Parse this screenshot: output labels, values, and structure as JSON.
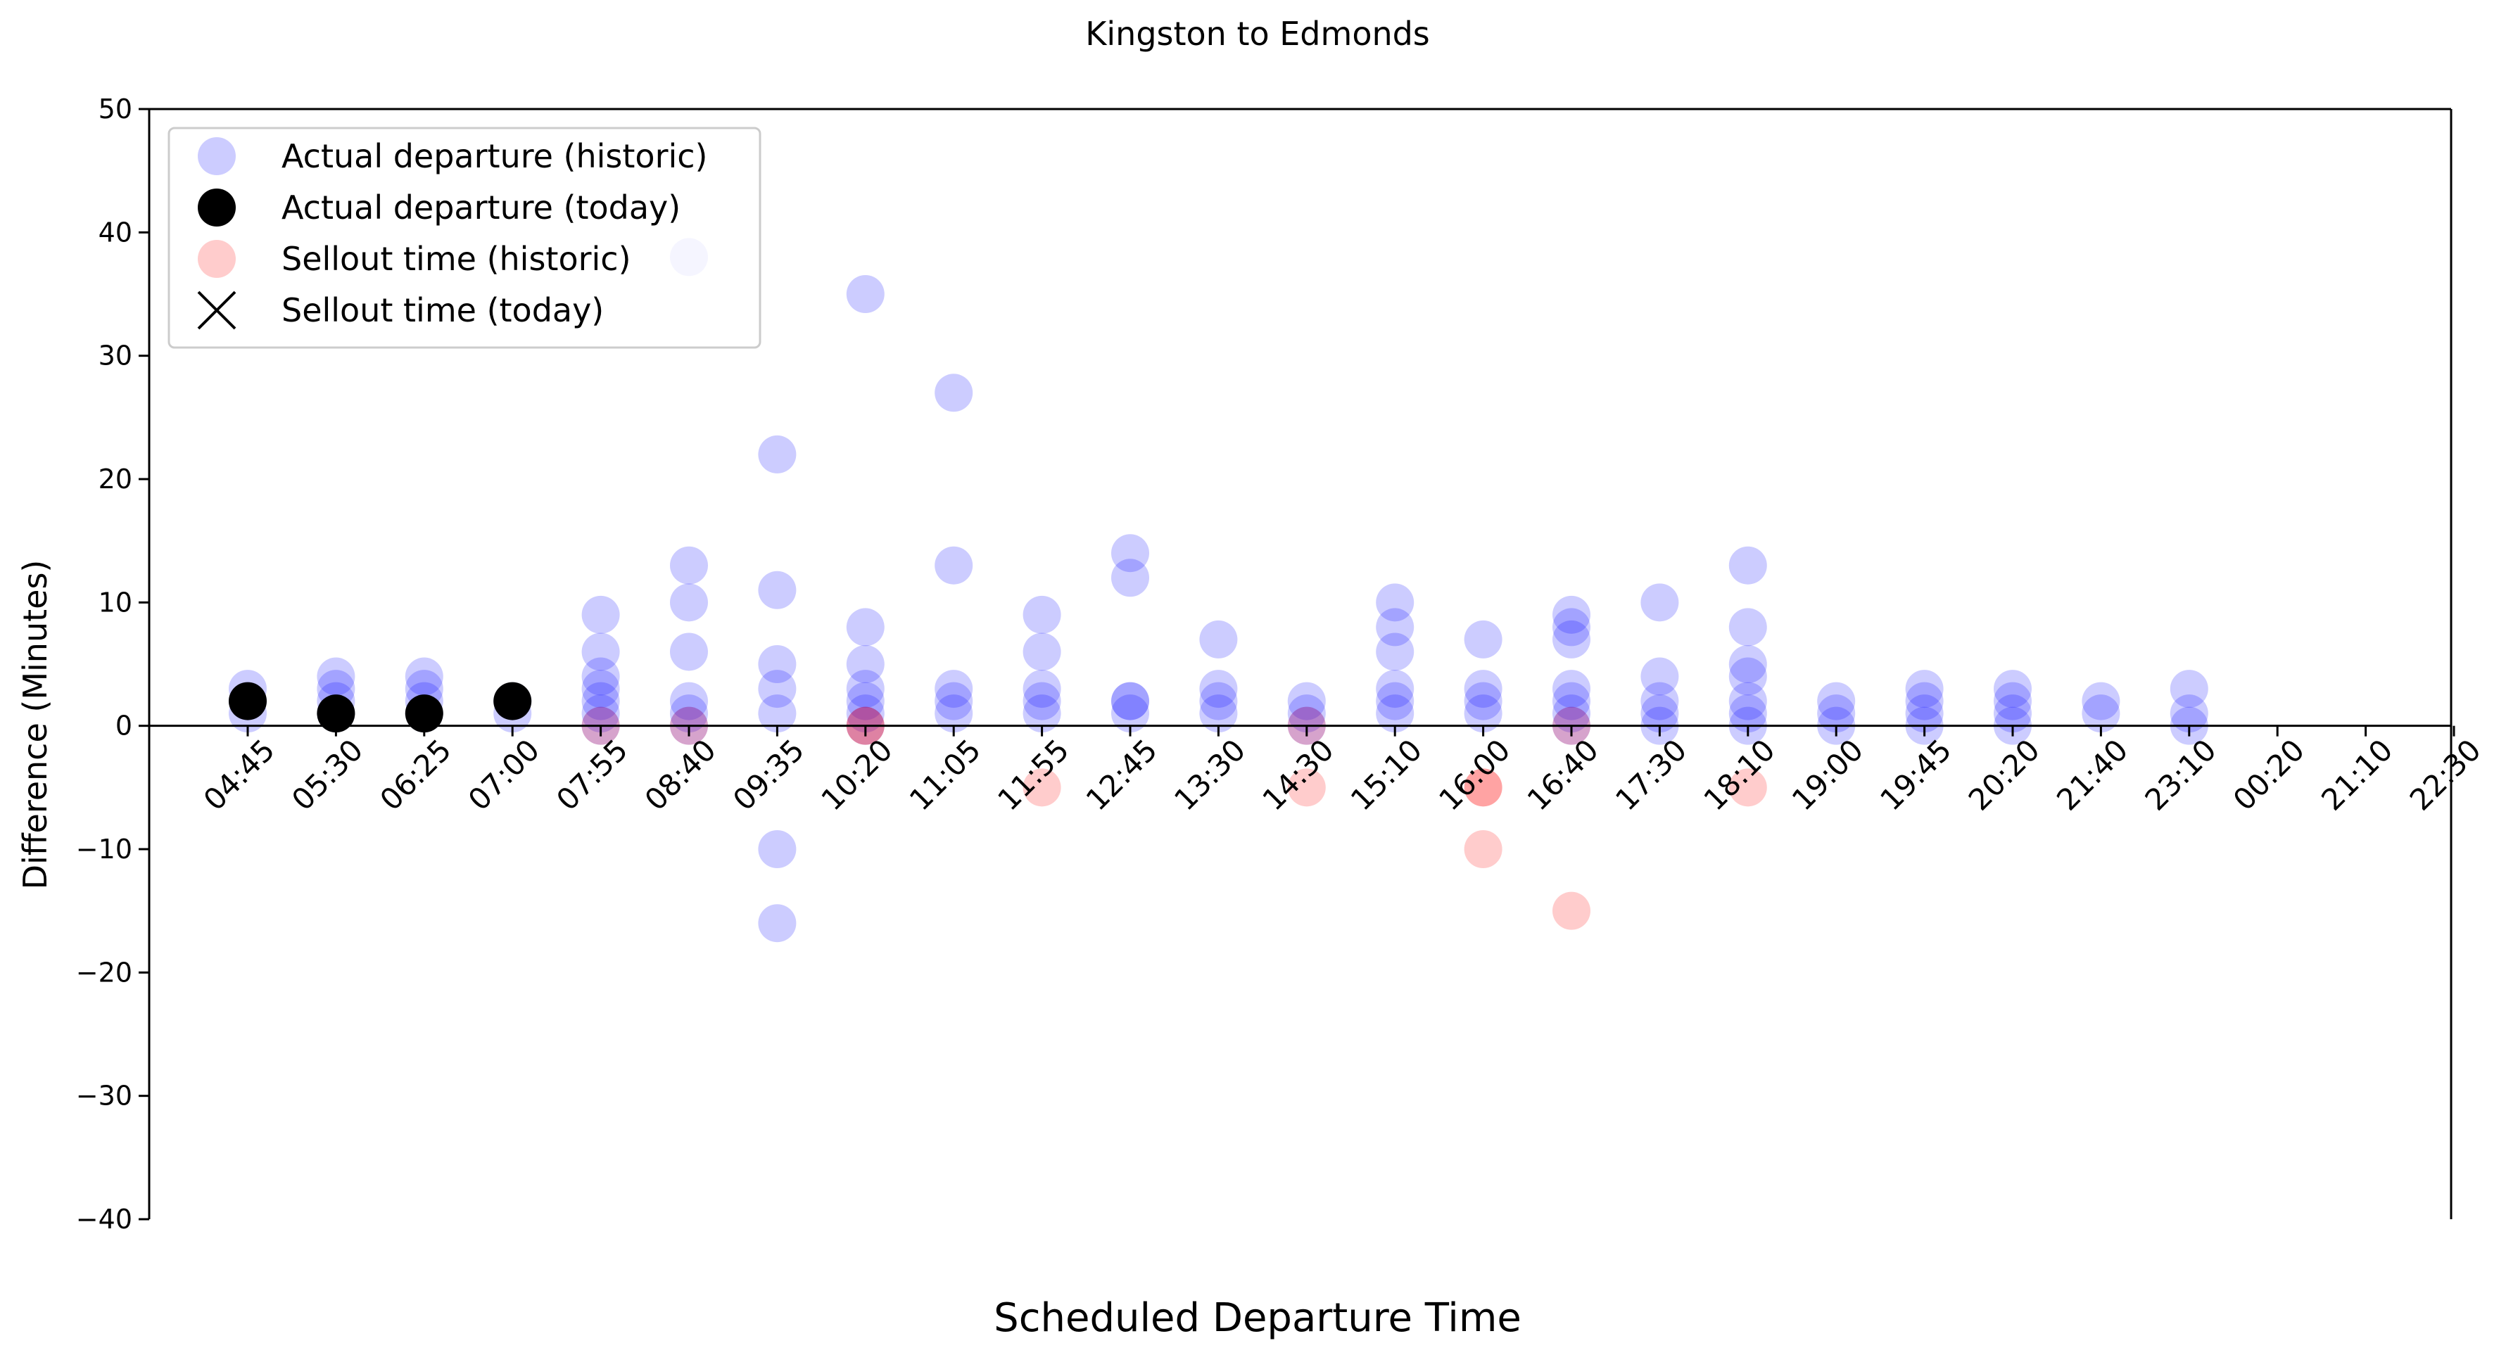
{
  "chart_data": {
    "type": "scatter",
    "title": "Kingston to Edmonds",
    "xlabel": "Scheduled Departure Time",
    "ylabel": "Difference (Minutes)",
    "ylim": [
      -40,
      50
    ],
    "yticks": [
      -40,
      -30,
      -20,
      -10,
      0,
      10,
      20,
      30,
      40,
      50
    ],
    "categories": [
      "04:45",
      "05:30",
      "06:25",
      "07:00",
      "07:55",
      "08:40",
      "09:35",
      "10:20",
      "11:05",
      "11:55",
      "12:45",
      "13:30",
      "14:30",
      "15:10",
      "16:00",
      "16:40",
      "17:30",
      "18:10",
      "19:00",
      "19:45",
      "20:20",
      "21:40",
      "23:10",
      "00:20",
      "21:10",
      "22:30"
    ],
    "legend_position": "upper-left",
    "colors": {
      "historic_departure": "#0000ff",
      "today_departure": "#000000",
      "historic_sellout": "#ff0000",
      "today_sellout": "#000000"
    },
    "series": [
      {
        "name": "Actual departure (historic)",
        "marker": "circle",
        "color": "#0000ff",
        "alpha": 0.2,
        "points": [
          [
            "04:45",
            3
          ],
          [
            "04:45",
            2
          ],
          [
            "04:45",
            1
          ],
          [
            "05:30",
            4
          ],
          [
            "05:30",
            3
          ],
          [
            "05:30",
            2
          ],
          [
            "05:30",
            1
          ],
          [
            "06:25",
            4
          ],
          [
            "06:25",
            3
          ],
          [
            "06:25",
            2
          ],
          [
            "06:25",
            1
          ],
          [
            "07:00",
            2
          ],
          [
            "07:00",
            1
          ],
          [
            "07:55",
            9
          ],
          [
            "07:55",
            6
          ],
          [
            "07:55",
            4
          ],
          [
            "07:55",
            3
          ],
          [
            "07:55",
            2
          ],
          [
            "07:55",
            1
          ],
          [
            "07:55",
            0
          ],
          [
            "08:40",
            38
          ],
          [
            "08:40",
            13
          ],
          [
            "08:40",
            10
          ],
          [
            "08:40",
            6
          ],
          [
            "08:40",
            2
          ],
          [
            "08:40",
            1
          ],
          [
            "08:40",
            0
          ],
          [
            "09:35",
            22
          ],
          [
            "09:35",
            11
          ],
          [
            "09:35",
            5
          ],
          [
            "09:35",
            3
          ],
          [
            "09:35",
            1
          ],
          [
            "09:35",
            -10
          ],
          [
            "09:35",
            -16
          ],
          [
            "10:20",
            35
          ],
          [
            "10:20",
            8
          ],
          [
            "10:20",
            5
          ],
          [
            "10:20",
            3
          ],
          [
            "10:20",
            2
          ],
          [
            "10:20",
            1
          ],
          [
            "10:20",
            0
          ],
          [
            "11:05",
            27
          ],
          [
            "11:05",
            13
          ],
          [
            "11:05",
            3
          ],
          [
            "11:05",
            2
          ],
          [
            "11:05",
            1
          ],
          [
            "11:55",
            9
          ],
          [
            "11:55",
            6
          ],
          [
            "11:55",
            3
          ],
          [
            "11:55",
            2
          ],
          [
            "11:55",
            1
          ],
          [
            "12:45",
            14
          ],
          [
            "12:45",
            12
          ],
          [
            "12:45",
            2
          ],
          [
            "12:45",
            2
          ],
          [
            "12:45",
            1
          ],
          [
            "13:30",
            7
          ],
          [
            "13:30",
            3
          ],
          [
            "13:30",
            2
          ],
          [
            "13:30",
            1
          ],
          [
            "14:30",
            2
          ],
          [
            "14:30",
            1
          ],
          [
            "14:30",
            0
          ],
          [
            "15:10",
            10
          ],
          [
            "15:10",
            8
          ],
          [
            "15:10",
            6
          ],
          [
            "15:10",
            3
          ],
          [
            "15:10",
            2
          ],
          [
            "15:10",
            1
          ],
          [
            "16:00",
            7
          ],
          [
            "16:00",
            3
          ],
          [
            "16:00",
            2
          ],
          [
            "16:00",
            1
          ],
          [
            "16:40",
            9
          ],
          [
            "16:40",
            8
          ],
          [
            "16:40",
            7
          ],
          [
            "16:40",
            3
          ],
          [
            "16:40",
            2
          ],
          [
            "16:40",
            1
          ],
          [
            "16:40",
            0
          ],
          [
            "17:30",
            10
          ],
          [
            "17:30",
            4
          ],
          [
            "17:30",
            2
          ],
          [
            "17:30",
            1
          ],
          [
            "17:30",
            0
          ],
          [
            "18:10",
            13
          ],
          [
            "18:10",
            8
          ],
          [
            "18:10",
            5
          ],
          [
            "18:10",
            4
          ],
          [
            "18:10",
            2
          ],
          [
            "18:10",
            1
          ],
          [
            "18:10",
            0
          ],
          [
            "19:00",
            2
          ],
          [
            "19:00",
            1
          ],
          [
            "19:00",
            0
          ],
          [
            "19:45",
            3
          ],
          [
            "19:45",
            2
          ],
          [
            "19:45",
            1
          ],
          [
            "19:45",
            0
          ],
          [
            "20:20",
            3
          ],
          [
            "20:20",
            2
          ],
          [
            "20:20",
            1
          ],
          [
            "20:20",
            0
          ],
          [
            "21:40",
            2
          ],
          [
            "21:40",
            1
          ],
          [
            "23:10",
            3
          ],
          [
            "23:10",
            1
          ],
          [
            "23:10",
            0
          ]
        ]
      },
      {
        "name": "Actual departure (today)",
        "marker": "circle",
        "color": "#000000",
        "alpha": 1.0,
        "points": [
          [
            "04:45",
            2
          ],
          [
            "05:30",
            1
          ],
          [
            "06:25",
            1
          ],
          [
            "07:00",
            2
          ]
        ]
      },
      {
        "name": "Sellout time (historic)",
        "marker": "circle",
        "color": "#ff0000",
        "alpha": 0.2,
        "points": [
          [
            "07:55",
            0
          ],
          [
            "08:40",
            0
          ],
          [
            "10:20",
            0
          ],
          [
            "10:20",
            0
          ],
          [
            "11:55",
            -5
          ],
          [
            "14:30",
            -5
          ],
          [
            "14:30",
            0
          ],
          [
            "16:00",
            -5
          ],
          [
            "16:00",
            -5
          ],
          [
            "16:00",
            -10
          ],
          [
            "16:40",
            0
          ],
          [
            "16:40",
            -15
          ],
          [
            "18:10",
            -5
          ]
        ]
      },
      {
        "name": "Sellout time (today)",
        "marker": "x",
        "color": "#000000",
        "alpha": 1.0,
        "points": []
      }
    ]
  }
}
